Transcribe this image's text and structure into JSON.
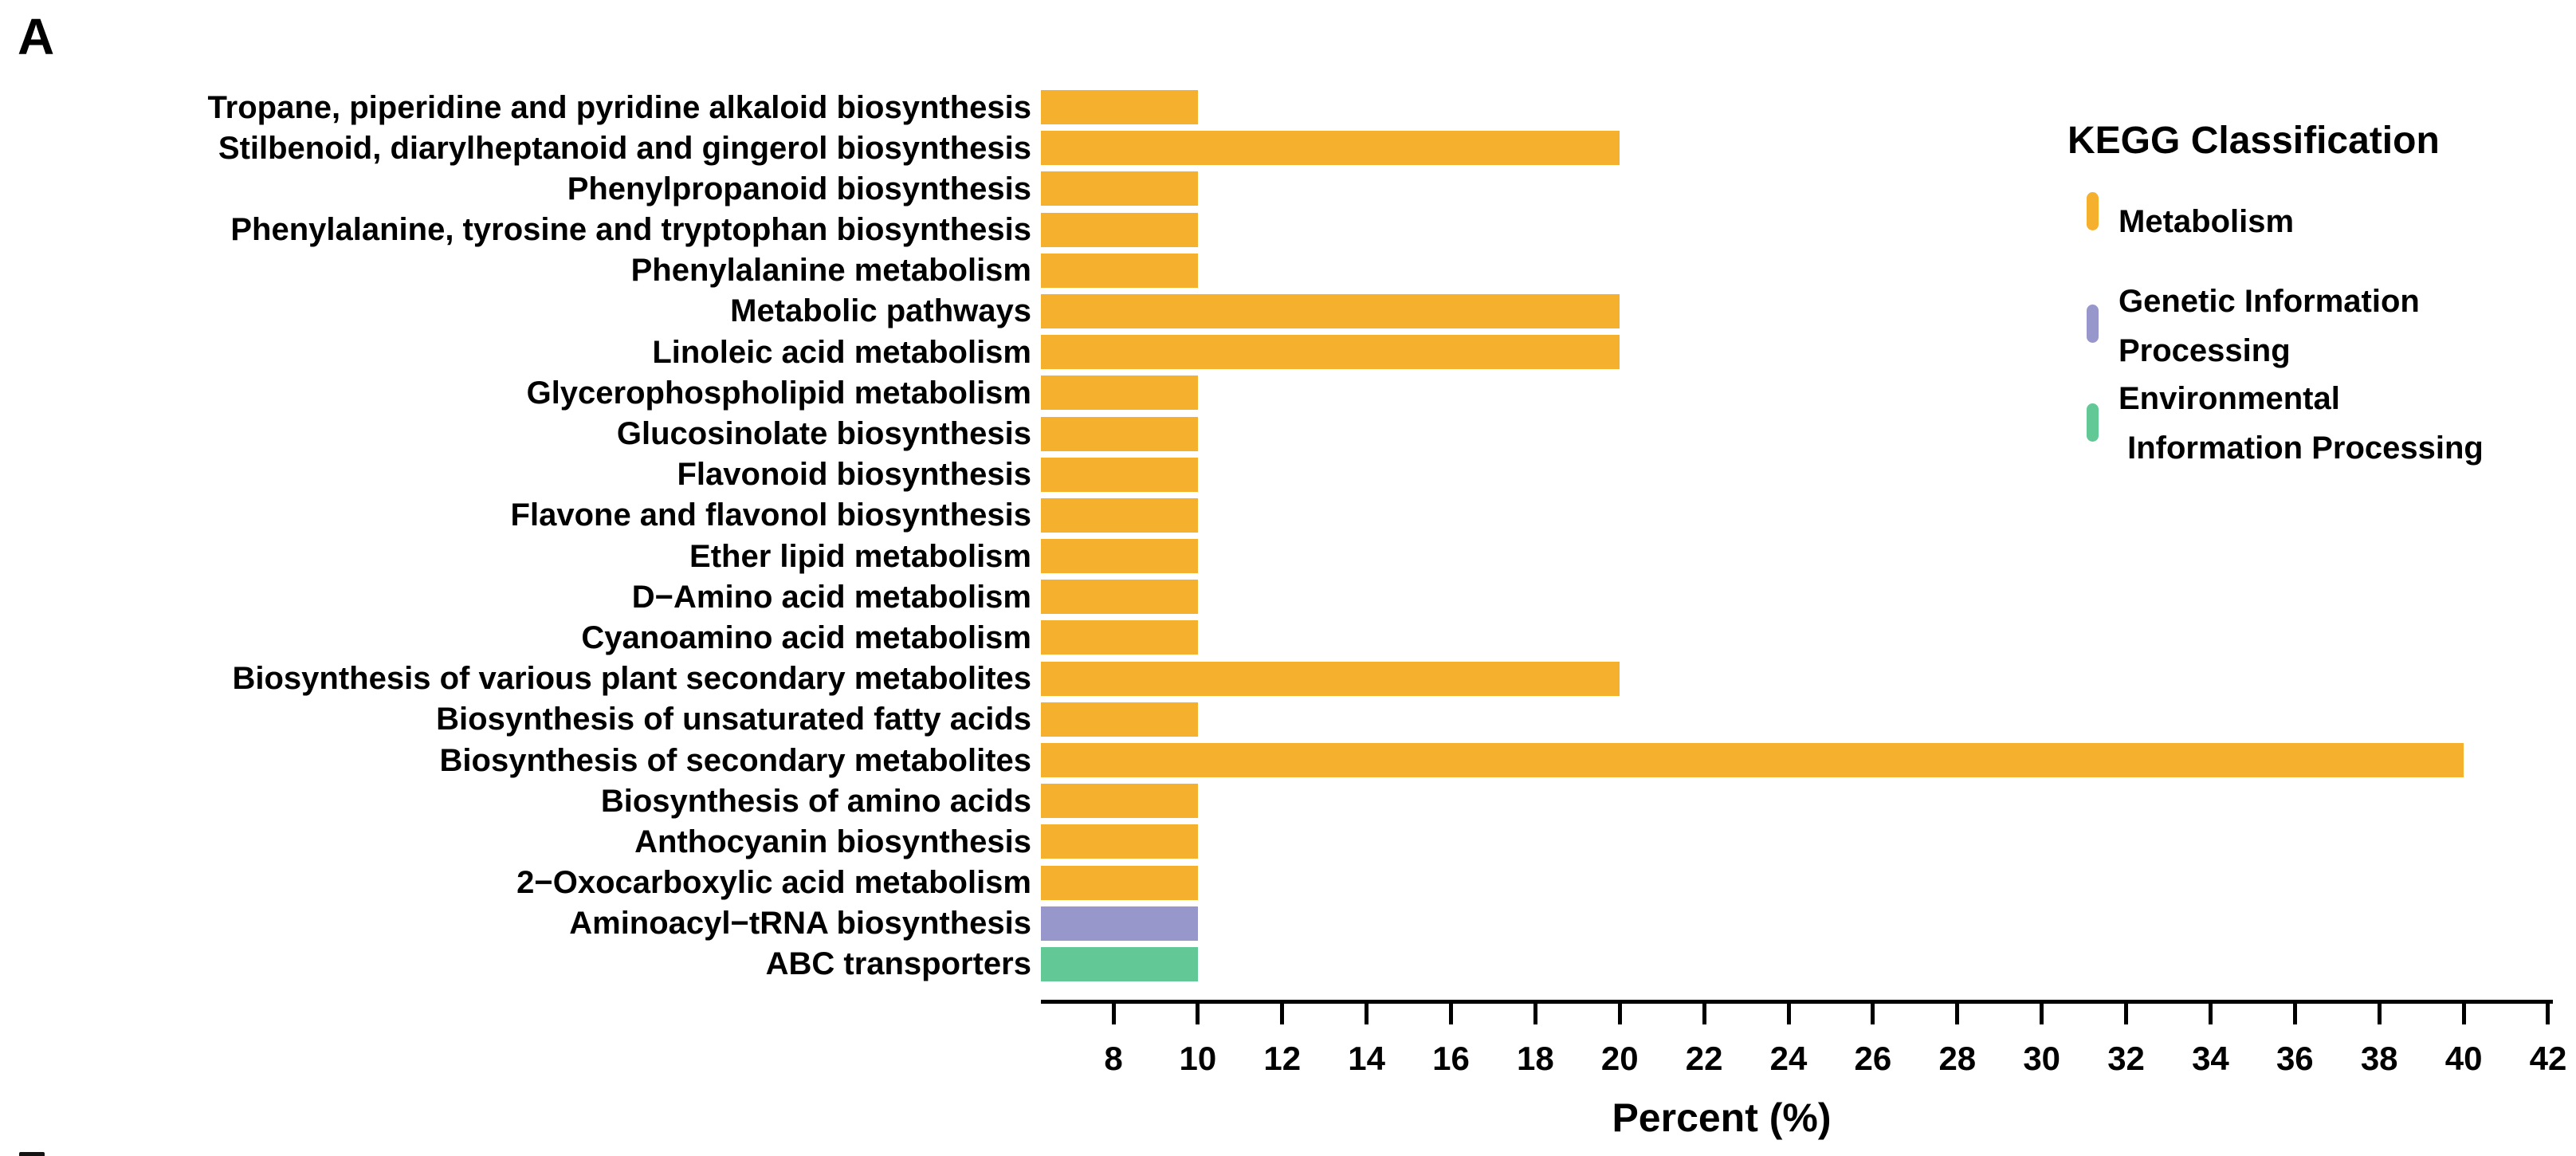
{
  "figure": {
    "panel_label": "A"
  },
  "chart_data": {
    "type": "bar",
    "orientation": "horizontal",
    "title": "",
    "xlabel": "Percent (%)",
    "ylabel": "",
    "xlim": [
      6.3,
      42.1
    ],
    "xticks": [
      8,
      10,
      12,
      14,
      16,
      18,
      20,
      22,
      24,
      26,
      28,
      30,
      32,
      34,
      36,
      38,
      40,
      42
    ],
    "grid": false,
    "legend_position": "right",
    "legend_title": "KEGG Classification",
    "categories": [
      "Tropane, piperidine and pyridine alkaloid biosynthesis",
      "Stilbenoid, diarylheptanoid and gingerol biosynthesis",
      "Phenylpropanoid biosynthesis",
      "Phenylalanine, tyrosine and tryptophan biosynthesis",
      "Phenylalanine metabolism",
      "Metabolic pathways",
      "Linoleic acid metabolism",
      "Glycerophospholipid metabolism",
      "Glucosinolate biosynthesis",
      "Flavonoid biosynthesis",
      "Flavone and flavonol biosynthesis",
      "Ether lipid metabolism",
      "D−Amino acid metabolism",
      "Cyanoamino acid metabolism",
      "Biosynthesis of various plant secondary metabolites",
      "Biosynthesis of unsaturated fatty acids",
      "Biosynthesis of secondary metabolites",
      "Biosynthesis of amino acids",
      "Anthocyanin biosynthesis",
      "2−Oxocarboxylic acid metabolism",
      "Aminoacyl−tRNA biosynthesis",
      "ABC transporters"
    ],
    "values": [
      10,
      20,
      10,
      10,
      10,
      20,
      20,
      10,
      10,
      10,
      10,
      10,
      10,
      10,
      20,
      10,
      40,
      10,
      10,
      10,
      10,
      10
    ],
    "classification": [
      "Metabolism",
      "Metabolism",
      "Metabolism",
      "Metabolism",
      "Metabolism",
      "Metabolism",
      "Metabolism",
      "Metabolism",
      "Metabolism",
      "Metabolism",
      "Metabolism",
      "Metabolism",
      "Metabolism",
      "Metabolism",
      "Metabolism",
      "Metabolism",
      "Metabolism",
      "Metabolism",
      "Metabolism",
      "Metabolism",
      "Genetic Information Processing",
      "Environmental Information Processing"
    ],
    "colors": {
      "Metabolism": "#F5B02E",
      "Genetic Information Processing": "#9897CB",
      "Environmental Information Processing": "#62C896"
    }
  },
  "legend": {
    "title": "KEGG Classification",
    "items": [
      {
        "name": "Metabolism",
        "color": "#F5B02E",
        "line1": "Metabolism",
        "line2": ""
      },
      {
        "name": "Genetic Information Processing",
        "color": "#9897CB",
        "line1": "Genetic Information",
        "line2": "Processing"
      },
      {
        "name": "Environmental Information Processing",
        "color": "#62C896",
        "line1": "Environmental",
        "line2": " Information Processing"
      }
    ]
  },
  "x_axis": {
    "label": "Percent (%)"
  }
}
